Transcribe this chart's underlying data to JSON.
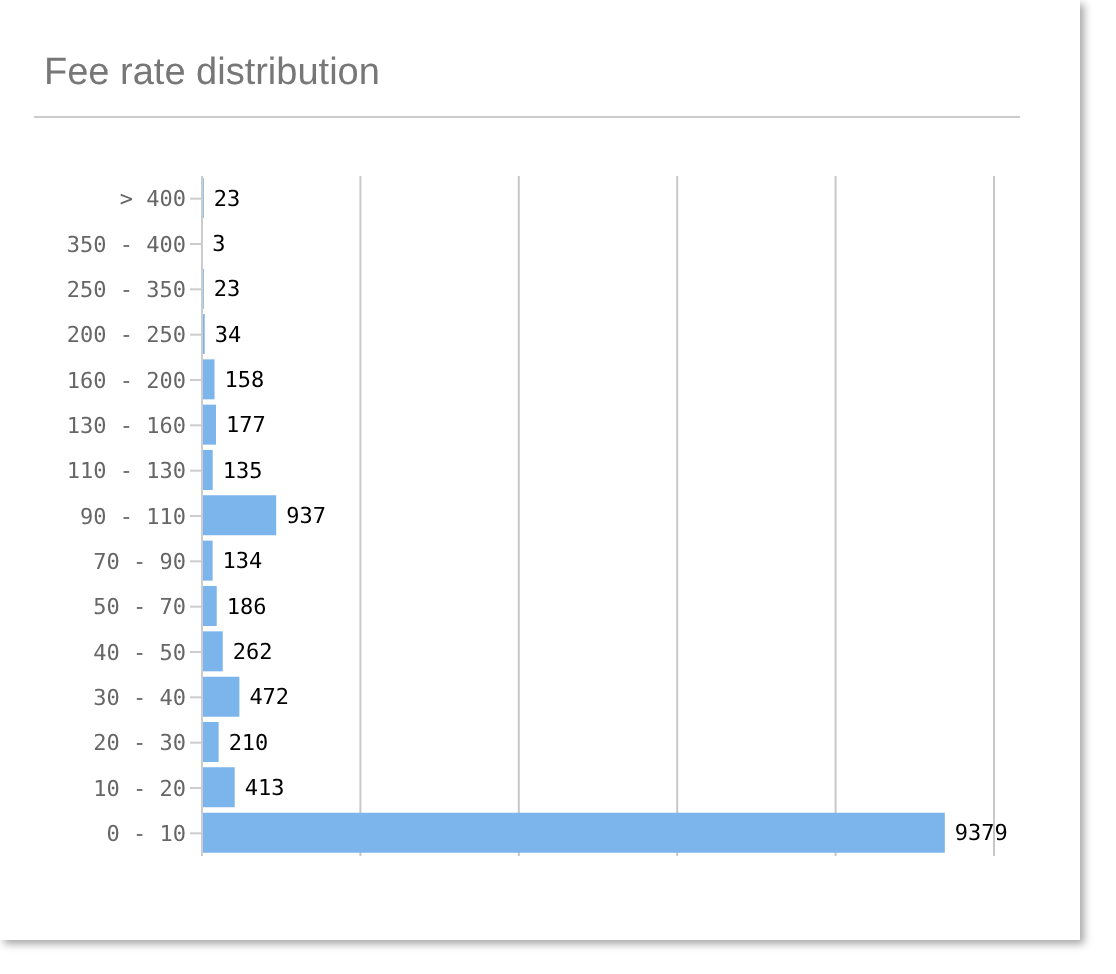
{
  "chart_data": {
    "type": "bar",
    "orientation": "horizontal",
    "title": "Fee rate distribution",
    "categories": [
      "> 400",
      "350 - 400",
      "250 - 350",
      "200 - 250",
      "160 - 200",
      "130 - 160",
      "110 - 130",
      "90 - 110",
      "70 - 90",
      "50 - 70",
      "40 - 50",
      "30 - 40",
      "20 - 30",
      "10 - 20",
      "0 - 10"
    ],
    "values": [
      23,
      3,
      23,
      34,
      158,
      177,
      135,
      937,
      134,
      186,
      262,
      472,
      210,
      413,
      9379
    ],
    "color": "#7cb5ec",
    "data_labels": true,
    "grid": "x",
    "tick_labels": "y",
    "xlim": [
      0,
      10000
    ]
  }
}
